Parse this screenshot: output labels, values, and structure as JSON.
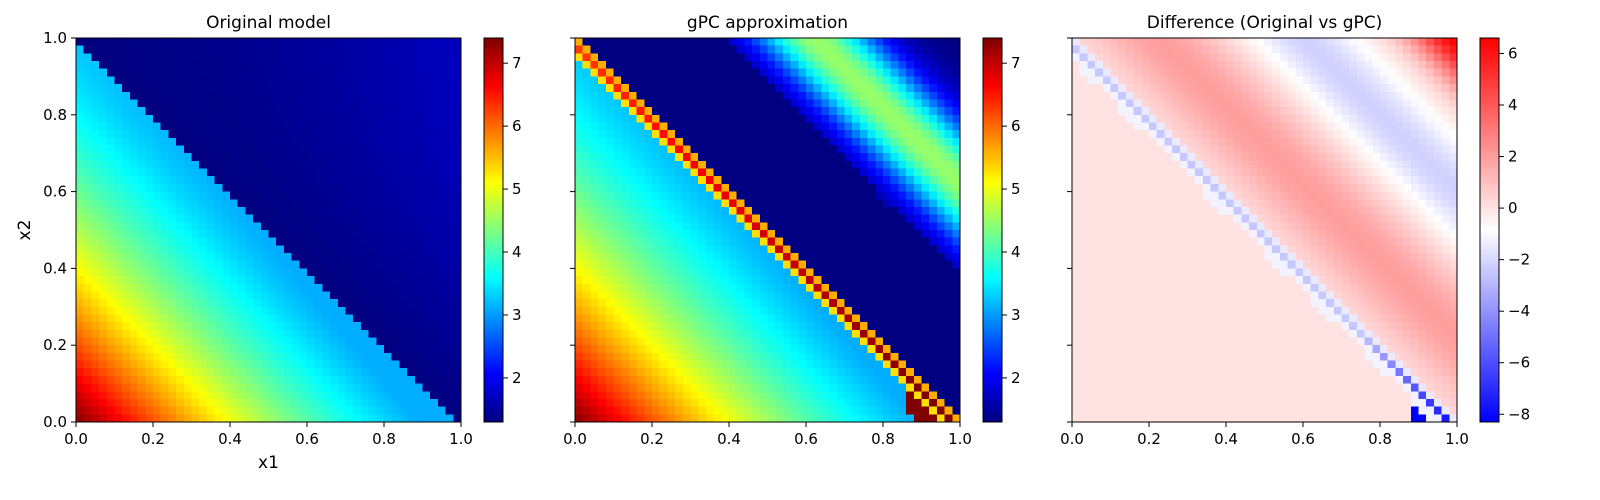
{
  "figure": {
    "panels": [
      {
        "title": "Original model"
      },
      {
        "title": "gPC approximation"
      },
      {
        "title": "Difference (Original vs gPC)"
      }
    ]
  },
  "chart_data": [
    {
      "type": "heatmap",
      "title": "Original model",
      "xlabel": "x1",
      "ylabel": "x2",
      "xlim": [
        0.0,
        1.0
      ],
      "ylim": [
        0.0,
        1.0
      ],
      "xticks": [
        "0.0",
        "0.2",
        "0.4",
        "0.6",
        "0.8",
        "1.0"
      ],
      "yticks": [
        "0.0",
        "0.2",
        "0.4",
        "0.6",
        "0.8",
        "1.0"
      ],
      "grid_size": 50,
      "colormap": "jet",
      "colorbar": {
        "min": 1.3,
        "max": 7.4,
        "ticks": [
          "2",
          "3",
          "4",
          "5",
          "6",
          "7"
        ]
      },
      "field_description": "Below the anti-diagonal x1 + x2 < 1 the value decreases from about 7.4 at (0,0) to about 3.2 near the diagonal; above the diagonal the value is about 1.3-1.9 (dark blue).",
      "field_samples": [
        {
          "x1": 0.0,
          "x2": 0.0,
          "value": 7.4
        },
        {
          "x1": 0.2,
          "x2": 0.0,
          "value": 6.0
        },
        {
          "x1": 0.4,
          "x2": 0.0,
          "value": 5.0
        },
        {
          "x1": 0.6,
          "x2": 0.0,
          "value": 4.2
        },
        {
          "x1": 0.8,
          "x2": 0.0,
          "value": 3.6
        },
        {
          "x1": 0.0,
          "x2": 0.8,
          "value": 4.4
        },
        {
          "x1": 0.5,
          "x2": 0.7,
          "value": 1.3
        },
        {
          "x1": 0.9,
          "x2": 0.9,
          "value": 1.9
        }
      ]
    },
    {
      "type": "heatmap",
      "title": "gPC approximation",
      "xlabel": "",
      "ylabel": "",
      "xlim": [
        0.0,
        1.0
      ],
      "ylim": [
        0.0,
        1.0
      ],
      "xticks": [
        "0.0",
        "0.2",
        "0.4",
        "0.6",
        "0.8",
        "1.0"
      ],
      "grid_size": 50,
      "colormap": "jet",
      "colorbar": {
        "min": 1.3,
        "max": 7.4,
        "ticks": [
          "2",
          "3",
          "4",
          "5",
          "6",
          "7"
        ]
      },
      "field_description": "Same as the original below the diagonal; a narrow band of high values (about 5.5-7.4) along the diagonal; a dark-blue band above it, then a smooth band rising to about 4.5 (yellow-green) before falling back toward the top-right corner.",
      "field_samples": [
        {
          "x1": 0.0,
          "x2": 0.0,
          "value": 7.4
        },
        {
          "x1": 0.3,
          "x2": 0.7,
          "value": 5.5
        },
        {
          "x1": 0.97,
          "x2": 0.03,
          "value": 7.4
        },
        {
          "x1": 0.5,
          "x2": 0.7,
          "value": 1.3
        },
        {
          "x1": 0.75,
          "x2": 0.85,
          "value": 4.5
        },
        {
          "x1": 1.0,
          "x2": 1.0,
          "value": 1.3
        }
      ]
    },
    {
      "type": "heatmap",
      "title": "Difference (Original vs gPC)",
      "xlabel": "",
      "ylabel": "",
      "xlim": [
        0.0,
        1.0
      ],
      "ylim": [
        0.0,
        1.0
      ],
      "xticks": [
        "0.0",
        "0.2",
        "0.4",
        "0.6",
        "0.8",
        "1.0"
      ],
      "grid_size": 50,
      "colormap": "bwr",
      "colorbar": {
        "min": -8.3,
        "max": 6.6,
        "ticks": [
          "6",
          "4",
          "2",
          "0",
          "−2",
          "−4",
          "−6",
          "−8"
        ]
      },
      "field_description": "About 0 below the diagonal; a narrow negative band along the diagonal reaching about -8.3 near (0.95, 0.0); a positive band of about +2 in the middle of the upper triangle, a negative band of about -2, and up to about +6 in the top-right corner.",
      "field_samples": [
        {
          "x1": 0.2,
          "x2": 0.2,
          "value": 0.0
        },
        {
          "x1": 0.3,
          "x2": 0.7,
          "value": -2.5
        },
        {
          "x1": 0.95,
          "x2": 0.02,
          "value": -8.3
        },
        {
          "x1": 0.5,
          "x2": 0.8,
          "value": 2.0
        },
        {
          "x1": 0.75,
          "x2": 0.85,
          "value": -2.0
        },
        {
          "x1": 1.0,
          "x2": 1.0,
          "value": 6.6
        }
      ]
    }
  ]
}
